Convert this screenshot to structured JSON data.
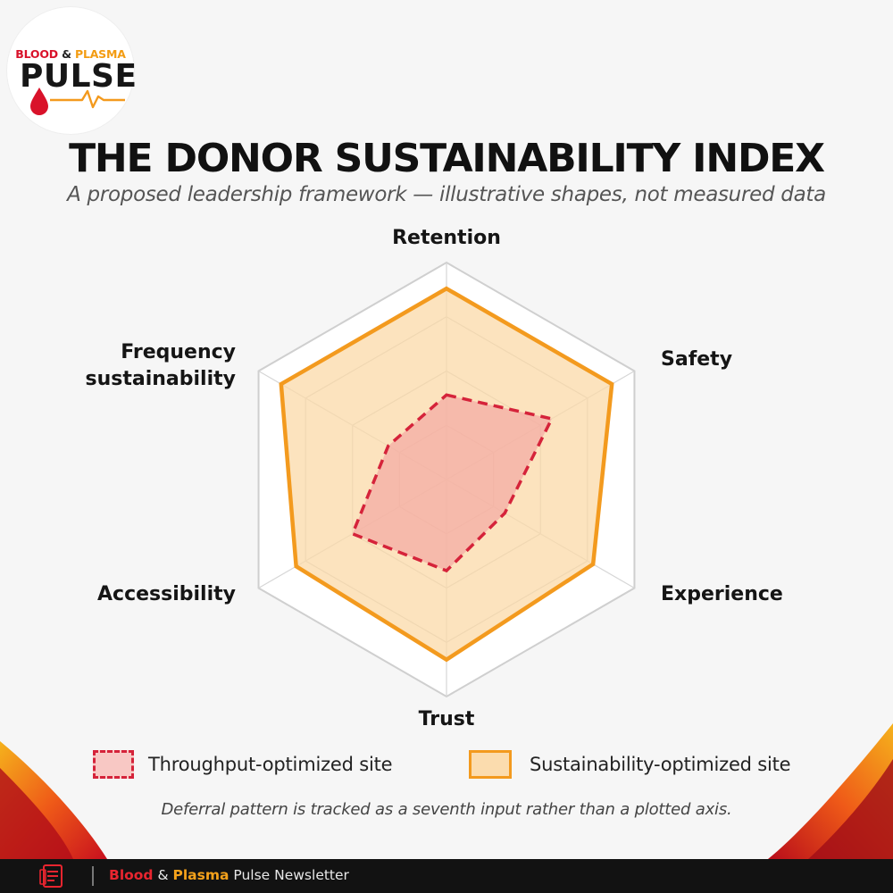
{
  "brand": {
    "logo_word1": "BLOOD",
    "logo_amp": "&",
    "logo_word2": "PLASMA",
    "logo_main": "PULSE",
    "logo_icon": "blood-drop-heartbeat-icon"
  },
  "colors": {
    "red": "#d5233a",
    "orange": "#f39a1e",
    "dark": "#121212"
  },
  "chart_data": {
    "type": "radar",
    "title": "THE DONOR SUSTAINABILITY INDEX",
    "subtitle": "A proposed leadership framework — illustrative shapes, not measured data",
    "axes": [
      "Retention",
      "Safety",
      "Experience",
      "Trust",
      "Accessibility",
      "Frequency sustainability"
    ],
    "rings": 4,
    "grid": true,
    "range": [
      0,
      1
    ],
    "series": [
      {
        "name": "Throughput-optimized site",
        "style": "dashed",
        "color": "#d5233a",
        "fill": "#f4a8a2",
        "values": [
          0.39,
          0.56,
          0.31,
          0.42,
          0.5,
          0.31
        ]
      },
      {
        "name": "Sustainability-optimized site",
        "style": "solid",
        "color": "#f39a1e",
        "fill": "#fbd9a8",
        "values": [
          0.88,
          0.88,
          0.78,
          0.83,
          0.8,
          0.88
        ]
      }
    ],
    "legend_position": "bottom",
    "footnote": "Deferral pattern is tracked as a seventh input rather than a plotted axis."
  },
  "footer": {
    "icon": "newsletter-document-icon",
    "part_blood": "Blood",
    "part_amp": " & ",
    "part_plasma": "Plasma",
    "part_rest": " Pulse Newsletter"
  }
}
